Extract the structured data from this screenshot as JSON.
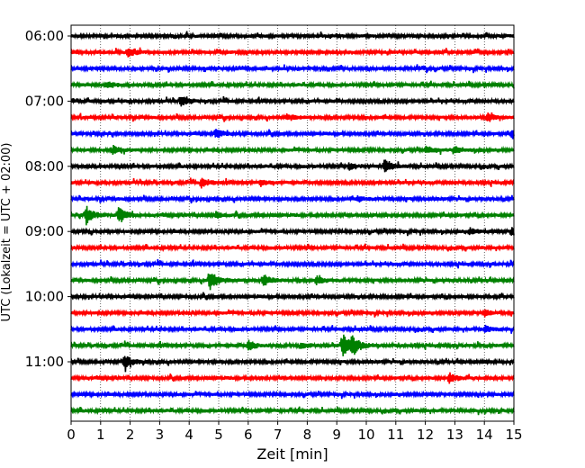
{
  "chart_data": {
    "type": "line",
    "title": "",
    "xlabel": "Zeit  [min]",
    "ylabel": "UTC (Lokalzeit = UTC + 02:00)",
    "xlim": [
      0,
      15
    ],
    "x_ticks": [
      0,
      1,
      2,
      3,
      4,
      5,
      6,
      7,
      8,
      9,
      10,
      11,
      12,
      13,
      14,
      15
    ],
    "x_tick_labels": [
      "0",
      "1",
      "2",
      "3",
      "4",
      "5",
      "6",
      "7",
      "8",
      "9",
      "10",
      "11",
      "12",
      "13",
      "14",
      "15"
    ],
    "y_tick_labels": [
      "06:00",
      "07:00",
      "08:00",
      "09:00",
      "10:00",
      "11:00"
    ],
    "trace_minutes": 15,
    "grid": "vertical-dotted",
    "colors": [
      "#000000",
      "#ff0000",
      "#0000ff",
      "#008000"
    ],
    "series": [
      {
        "start": "06:00",
        "color": "#000000",
        "bursts": []
      },
      {
        "start": "06:15",
        "color": "#ff0000",
        "bursts": [
          {
            "t": 1.9,
            "amp": 0.5
          }
        ]
      },
      {
        "start": "06:30",
        "color": "#0000ff",
        "bursts": []
      },
      {
        "start": "06:45",
        "color": "#008000",
        "bursts": [
          {
            "t": 1.2,
            "amp": 0.45
          }
        ]
      },
      {
        "start": "07:00",
        "color": "#000000",
        "bursts": [
          {
            "t": 3.7,
            "amp": 0.7
          }
        ]
      },
      {
        "start": "07:15",
        "color": "#ff0000",
        "bursts": [
          {
            "t": 7.3,
            "amp": 0.4
          },
          {
            "t": 14.1,
            "amp": 0.45
          }
        ]
      },
      {
        "start": "07:30",
        "color": "#0000ff",
        "bursts": [
          {
            "t": 4.9,
            "amp": 0.5
          },
          {
            "t": 14.9,
            "amp": 0.45
          }
        ]
      },
      {
        "start": "07:45",
        "color": "#008000",
        "bursts": [
          {
            "t": 1.4,
            "amp": 0.55
          },
          {
            "t": 12.0,
            "amp": 0.4
          },
          {
            "t": 13.0,
            "amp": 0.45
          }
        ]
      },
      {
        "start": "08:00",
        "color": "#000000",
        "bursts": [
          {
            "t": 10.6,
            "amp": 0.85
          },
          {
            "t": 9.4,
            "amp": 0.4
          }
        ]
      },
      {
        "start": "08:15",
        "color": "#ff0000",
        "bursts": [
          {
            "t": 4.4,
            "amp": 0.6
          },
          {
            "t": 6.4,
            "amp": 0.4
          }
        ]
      },
      {
        "start": "08:30",
        "color": "#0000ff",
        "bursts": [
          {
            "t": 9.7,
            "amp": 0.35
          }
        ]
      },
      {
        "start": "08:45",
        "color": "#008000",
        "bursts": [
          {
            "t": 0.5,
            "amp": 1.1
          },
          {
            "t": 1.6,
            "amp": 1.0
          },
          {
            "t": 4.9,
            "amp": 0.35
          }
        ]
      },
      {
        "start": "09:00",
        "color": "#000000",
        "bursts": [
          {
            "t": 13.5,
            "amp": 0.45
          },
          {
            "t": 14.9,
            "amp": 0.5
          }
        ]
      },
      {
        "start": "09:15",
        "color": "#ff0000",
        "bursts": []
      },
      {
        "start": "09:30",
        "color": "#0000ff",
        "bursts": []
      },
      {
        "start": "09:45",
        "color": "#008000",
        "bursts": [
          {
            "t": 4.7,
            "amp": 1.3
          },
          {
            "t": 6.5,
            "amp": 0.8
          },
          {
            "t": 8.3,
            "amp": 0.5
          }
        ]
      },
      {
        "start": "10:00",
        "color": "#000000",
        "bursts": []
      },
      {
        "start": "10:15",
        "color": "#ff0000",
        "bursts": [
          {
            "t": 14.0,
            "amp": 0.35
          }
        ]
      },
      {
        "start": "10:30",
        "color": "#0000ff",
        "bursts": [
          {
            "t": 14.0,
            "amp": 0.4
          }
        ]
      },
      {
        "start": "10:45",
        "color": "#008000",
        "bursts": [
          {
            "t": 6.0,
            "amp": 0.65
          },
          {
            "t": 7.8,
            "amp": 0.4
          },
          {
            "t": 9.2,
            "amp": 1.5
          },
          {
            "t": 9.5,
            "amp": 1.1
          }
        ]
      },
      {
        "start": "11:00",
        "color": "#000000",
        "bursts": [
          {
            "t": 1.8,
            "amp": 0.9
          }
        ]
      },
      {
        "start": "11:15",
        "color": "#ff0000",
        "bursts": [
          {
            "t": 12.8,
            "amp": 0.7
          }
        ]
      },
      {
        "start": "11:30",
        "color": "#0000ff",
        "bursts": []
      },
      {
        "start": "11:45",
        "color": "#008000",
        "bursts": []
      }
    ]
  }
}
